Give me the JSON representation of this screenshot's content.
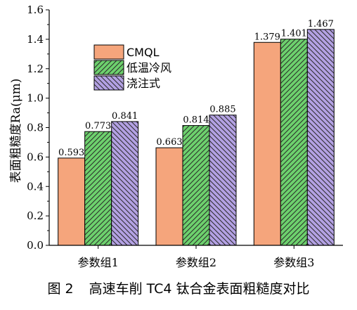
{
  "chart_data": {
    "type": "bar",
    "title": "",
    "xlabel": "",
    "ylabel": "表面粗糙度Ra(μm)",
    "categories": [
      "参数组1",
      "参数组2",
      "参数组3"
    ],
    "series": [
      {
        "name": "CMQL",
        "values": [
          0.593,
          0.663,
          1.379
        ],
        "color": "#f5a57c",
        "pattern": "none"
      },
      {
        "name": "低温冷风",
        "values": [
          0.773,
          0.814,
          1.401
        ],
        "color": "#6dd16d",
        "pattern": "hatch-forward"
      },
      {
        "name": "浇注式",
        "values": [
          0.841,
          0.885,
          1.467
        ],
        "color": "#b3a1e3",
        "pattern": "hatch-backward"
      }
    ],
    "data_labels": [
      "0.593",
      "0.773",
      "0.841",
      "0.663",
      "0.814",
      "0.885",
      "1.379",
      "1.401",
      "1.467"
    ],
    "ylim": [
      0.0,
      1.6
    ],
    "yticks": [
      "0.0",
      "0.2",
      "0.4",
      "0.6",
      "0.8",
      "1.0",
      "1.2",
      "1.4",
      "1.6"
    ],
    "grid": false,
    "legend_position": "top-left"
  },
  "caption": {
    "number": "图 2",
    "text": "高速车削 TC4 钛合金表面粗糙度对比"
  }
}
